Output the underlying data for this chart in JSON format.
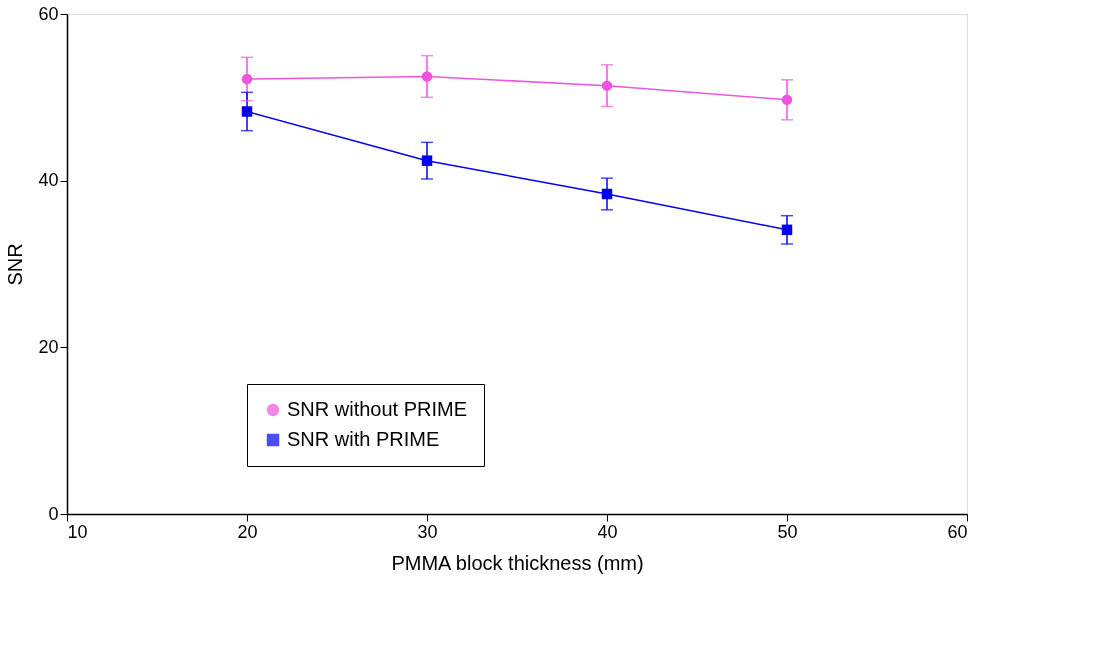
{
  "chart_data": {
    "type": "line",
    "xlabel": "PMMA block thickness (mm)",
    "ylabel": "SNR",
    "x": [
      20,
      30,
      40,
      50
    ],
    "series": [
      {
        "name": "SNR without PRIME",
        "color": "#ee55dd",
        "marker": "circle",
        "values": [
          52.2,
          52.5,
          51.4,
          49.7
        ],
        "errors": [
          2.6,
          2.5,
          2.5,
          2.4
        ]
      },
      {
        "name": "SNR with PRIME",
        "color": "#0000ee",
        "marker": "square",
        "values": [
          48.3,
          42.4,
          38.4,
          34.1
        ],
        "errors": [
          2.3,
          2.2,
          1.9,
          1.7
        ]
      }
    ],
    "xlim": [
      10,
      60
    ],
    "xticks": [
      10,
      20,
      30,
      40,
      50,
      60
    ],
    "ylim": [
      0,
      60
    ],
    "yticks": [
      0,
      20,
      40,
      60
    ],
    "grid": false,
    "legend": "bottom left",
    "line_style": "solid"
  }
}
